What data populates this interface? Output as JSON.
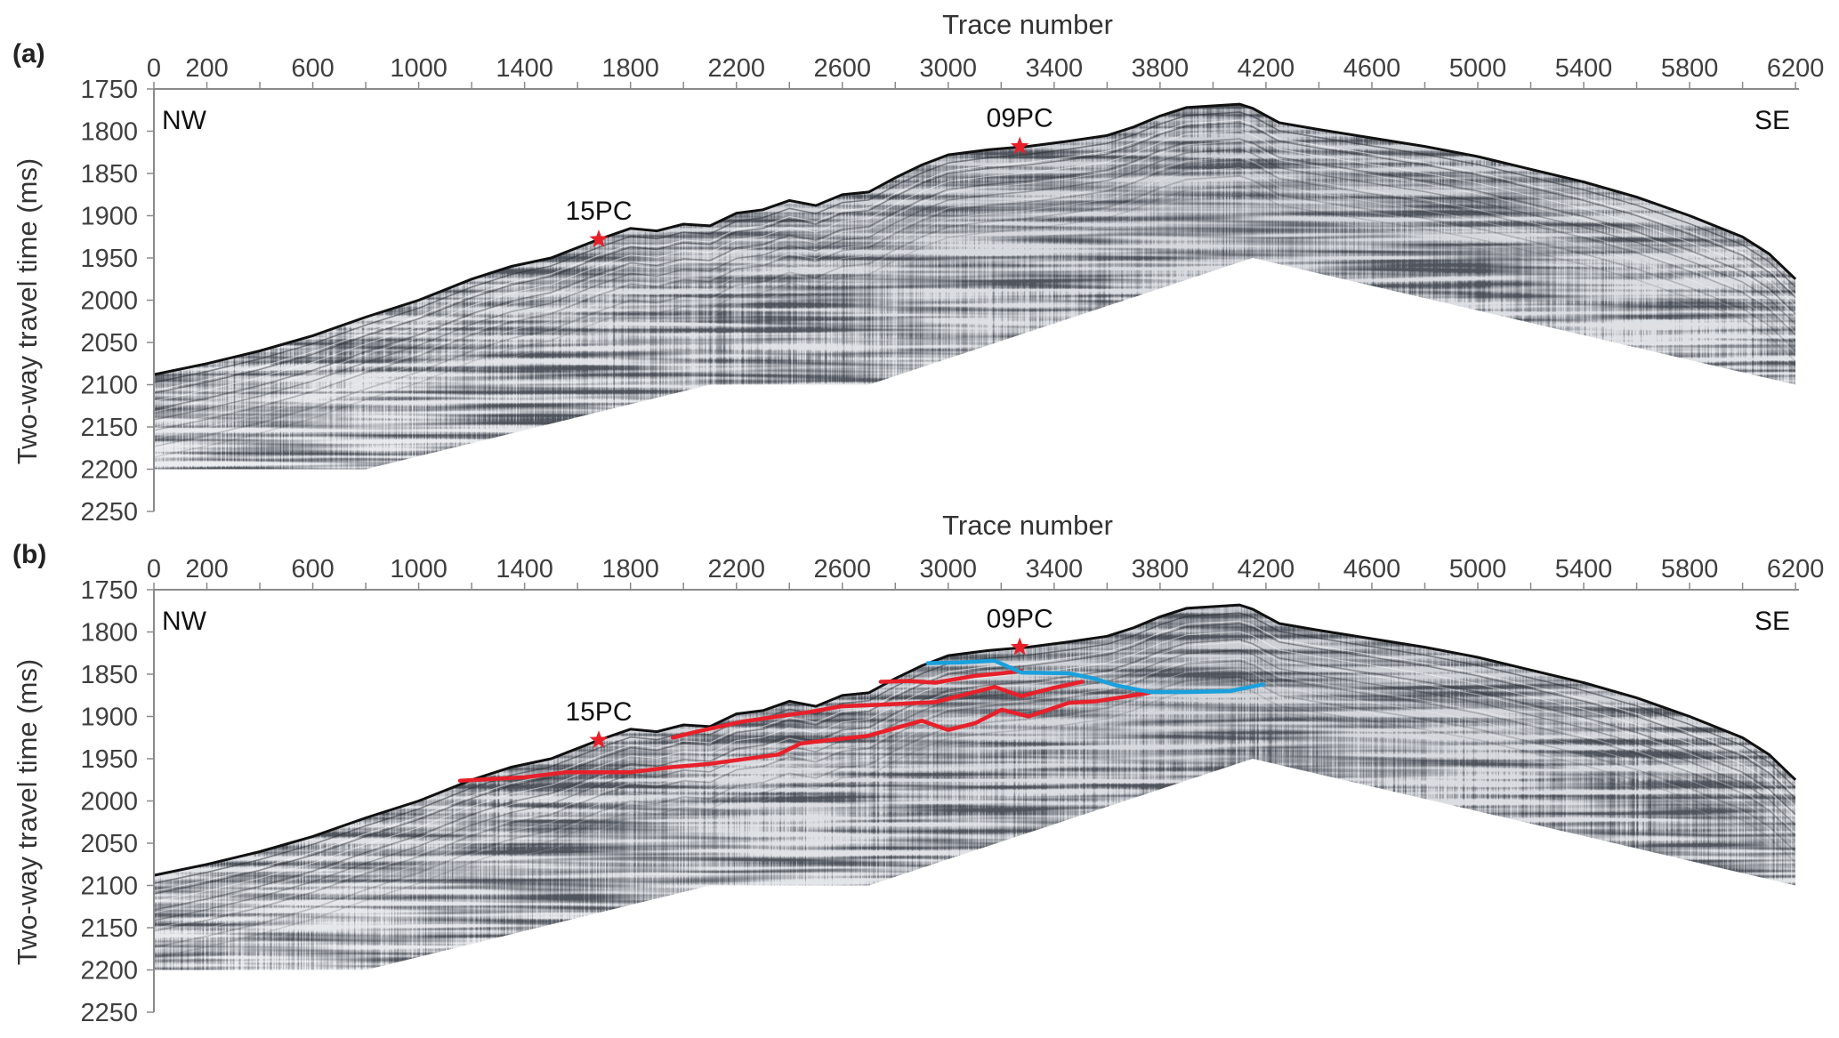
{
  "colors": {
    "horizon_red": "#e8202a",
    "horizon_blue": "#1aa0dc",
    "core_star": "#e8202a",
    "axis": "#8a8a8a"
  },
  "chart_data": [
    {
      "type": "seismic_profile",
      "panel_label": "(a)",
      "xlabel": "Trace number",
      "ylabel": "Two-way travel  time (ms)",
      "xlim": [
        0,
        6250
      ],
      "ylim": [
        1750,
        2250
      ],
      "xtick_labels": [
        "0",
        "200",
        "600",
        "1000",
        "1400",
        "1800",
        "2200",
        "2600",
        "3000",
        "3400",
        "3800",
        "4200",
        "4600",
        "5000",
        "5400",
        "5800",
        "6200"
      ],
      "xticks_minor_step": 200,
      "ytick_labels": [
        "1750",
        "1800",
        "1850",
        "1900",
        "1950",
        "2000",
        "2050",
        "2100",
        "2150",
        "2200",
        "2250"
      ],
      "direction_left": "NW",
      "direction_right": "SE",
      "cores": [
        {
          "label": "15PC",
          "trace": 1680,
          "twt": 1928
        },
        {
          "label": "09PC",
          "trace": 3270,
          "twt": 1818
        }
      ],
      "seafloor": [
        [
          0,
          2088
        ],
        [
          200,
          2075
        ],
        [
          400,
          2060
        ],
        [
          600,
          2042
        ],
        [
          800,
          2020
        ],
        [
          1000,
          2000
        ],
        [
          1200,
          1975
        ],
        [
          1350,
          1960
        ],
        [
          1500,
          1950
        ],
        [
          1680,
          1928
        ],
        [
          1800,
          1915
        ],
        [
          1900,
          1918
        ],
        [
          2000,
          1910
        ],
        [
          2100,
          1912
        ],
        [
          2200,
          1897
        ],
        [
          2300,
          1893
        ],
        [
          2400,
          1882
        ],
        [
          2500,
          1888
        ],
        [
          2600,
          1875
        ],
        [
          2700,
          1872
        ],
        [
          2800,
          1855
        ],
        [
          2900,
          1840
        ],
        [
          3000,
          1828
        ],
        [
          3150,
          1822
        ],
        [
          3300,
          1818
        ],
        [
          3450,
          1812
        ],
        [
          3600,
          1805
        ],
        [
          3700,
          1795
        ],
        [
          3800,
          1782
        ],
        [
          3900,
          1772
        ],
        [
          4000,
          1770
        ],
        [
          4100,
          1768
        ],
        [
          4150,
          1773
        ],
        [
          4250,
          1790
        ],
        [
          4400,
          1798
        ],
        [
          4600,
          1808
        ],
        [
          4800,
          1818
        ],
        [
          5000,
          1830
        ],
        [
          5200,
          1845
        ],
        [
          5400,
          1860
        ],
        [
          5600,
          1878
        ],
        [
          5800,
          1900
        ],
        [
          6000,
          1925
        ],
        [
          6100,
          1945
        ],
        [
          6200,
          1975
        ]
      ],
      "data_bottom": [
        [
          0,
          2200
        ],
        [
          800,
          2200
        ],
        [
          2100,
          2100
        ],
        [
          2700,
          2100
        ],
        [
          4150,
          1950
        ],
        [
          6200,
          2100
        ]
      ],
      "horizons": []
    },
    {
      "type": "seismic_profile",
      "panel_label": "(b)",
      "xlabel": "Trace number",
      "ylabel": "Two-way travel  time (ms)",
      "xlim": [
        0,
        6250
      ],
      "ylim": [
        1750,
        2250
      ],
      "xtick_labels": [
        "0",
        "200",
        "600",
        "1000",
        "1400",
        "1800",
        "2200",
        "2600",
        "3000",
        "3400",
        "3800",
        "4200",
        "4600",
        "5000",
        "5400",
        "5800",
        "6200"
      ],
      "xticks_minor_step": 200,
      "ytick_labels": [
        "1750",
        "1800",
        "1850",
        "1900",
        "1950",
        "2000",
        "2050",
        "2100",
        "2150",
        "2200",
        "2250"
      ],
      "direction_left": "NW",
      "direction_right": "SE",
      "cores": [
        {
          "label": "15PC",
          "trace": 1680,
          "twt": 1928
        },
        {
          "label": "09PC",
          "trace": 3270,
          "twt": 1818
        }
      ],
      "seafloor": [
        [
          0,
          2088
        ],
        [
          200,
          2075
        ],
        [
          400,
          2060
        ],
        [
          600,
          2042
        ],
        [
          800,
          2020
        ],
        [
          1000,
          2000
        ],
        [
          1200,
          1975
        ],
        [
          1350,
          1960
        ],
        [
          1500,
          1950
        ],
        [
          1680,
          1928
        ],
        [
          1800,
          1915
        ],
        [
          1900,
          1918
        ],
        [
          2000,
          1910
        ],
        [
          2100,
          1912
        ],
        [
          2200,
          1897
        ],
        [
          2300,
          1893
        ],
        [
          2400,
          1882
        ],
        [
          2500,
          1888
        ],
        [
          2600,
          1875
        ],
        [
          2700,
          1872
        ],
        [
          2800,
          1855
        ],
        [
          2900,
          1840
        ],
        [
          3000,
          1828
        ],
        [
          3150,
          1822
        ],
        [
          3300,
          1818
        ],
        [
          3450,
          1812
        ],
        [
          3600,
          1805
        ],
        [
          3700,
          1795
        ],
        [
          3800,
          1782
        ],
        [
          3900,
          1772
        ],
        [
          4000,
          1770
        ],
        [
          4100,
          1768
        ],
        [
          4150,
          1773
        ],
        [
          4250,
          1790
        ],
        [
          4400,
          1798
        ],
        [
          4600,
          1808
        ],
        [
          4800,
          1818
        ],
        [
          5000,
          1830
        ],
        [
          5200,
          1845
        ],
        [
          5400,
          1860
        ],
        [
          5600,
          1878
        ],
        [
          5800,
          1900
        ],
        [
          6000,
          1925
        ],
        [
          6100,
          1945
        ],
        [
          6200,
          1975
        ]
      ],
      "data_bottom": [
        [
          0,
          2200
        ],
        [
          800,
          2200
        ],
        [
          2100,
          2100
        ],
        [
          2700,
          2100
        ],
        [
          4150,
          1950
        ],
        [
          6200,
          2100
        ]
      ],
      "horizons": [
        {
          "color": "red",
          "points": [
            [
              1156,
              1976
            ],
            [
              1400,
              1972
            ],
            [
              1556,
              1966
            ],
            [
              1800,
              1966
            ],
            [
              1956,
              1960
            ],
            [
              2100,
              1956
            ],
            [
              2358,
              1945
            ],
            [
              2443,
              1932
            ],
            [
              2550,
              1928
            ],
            [
              2695,
              1923
            ],
            [
              2900,
              1905
            ],
            [
              3000,
              1916
            ],
            [
              3101,
              1908
            ],
            [
              3202,
              1892
            ],
            [
              3303,
              1900
            ],
            [
              3455,
              1884
            ],
            [
              3560,
              1882
            ],
            [
              3760,
              1872
            ]
          ]
        },
        {
          "color": "red",
          "points": [
            [
              1960,
              1925
            ],
            [
              2050,
              1918
            ],
            [
              2224,
              1906
            ],
            [
              2400,
              1898
            ],
            [
              2470,
              1895
            ],
            [
              2595,
              1888
            ],
            [
              2750,
              1886
            ],
            [
              2950,
              1883
            ],
            [
              3175,
              1865
            ],
            [
              3276,
              1876
            ],
            [
              3400,
              1866
            ],
            [
              3505,
              1859
            ]
          ]
        },
        {
          "color": "red",
          "points": [
            [
              2745,
              1859
            ],
            [
              2850,
              1858
            ],
            [
              2950,
              1860
            ],
            [
              3100,
              1852
            ],
            [
              3202,
              1849
            ],
            [
              3276,
              1846
            ]
          ]
        },
        {
          "color": "blue",
          "points": [
            [
              2923,
              1837
            ],
            [
              3050,
              1836
            ],
            [
              3175,
              1834
            ],
            [
              3276,
              1848
            ],
            [
              3455,
              1849
            ],
            [
              3550,
              1855
            ],
            [
              3632,
              1863
            ],
            [
              3760,
              1871
            ],
            [
              3900,
              1871
            ],
            [
              4063,
              1870
            ],
            [
              4190,
              1862
            ]
          ]
        }
      ]
    }
  ]
}
